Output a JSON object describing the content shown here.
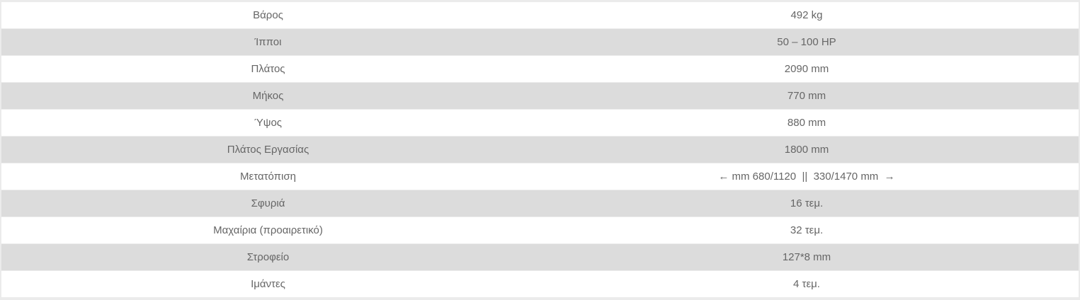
{
  "specs": [
    {
      "label": "Βάρος",
      "value": "492 kg"
    },
    {
      "label": "Ίπποι",
      "value": "50 – 100 HP"
    },
    {
      "label": "Πλάτος",
      "value": "2090 mm"
    },
    {
      "label": "Μήκος",
      "value": "770 mm"
    },
    {
      "label": "Ύψος",
      "value": "880 mm"
    },
    {
      "label": "Πλάτος Εργασίας",
      "value": "1800 mm"
    },
    {
      "label": "Μετατόπιση",
      "value": "← mm 680/1120  ||  330/1470 mm  →"
    },
    {
      "label": "Σφυριά",
      "value": "16 τεμ."
    },
    {
      "label": "Μαχαίρια (προαιρετικό)",
      "value": "32 τεμ."
    },
    {
      "label": "Στροφείο",
      "value": "127*8 mm"
    },
    {
      "label": "Ιμάντες",
      "value": "4 τεμ."
    }
  ]
}
